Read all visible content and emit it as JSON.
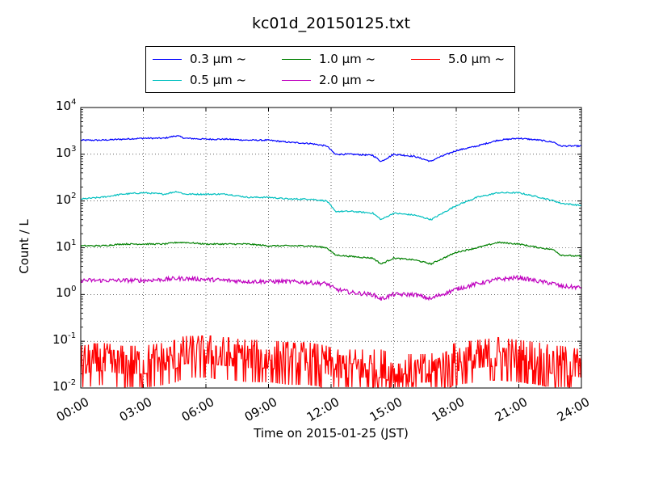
{
  "chart_data": {
    "type": "line",
    "title": "kc01d_20150125.txt",
    "xlabel": "Time on 2015-01-25 (JST)",
    "ylabel": "Count / L",
    "xlim": [
      "00:00",
      "24:00"
    ],
    "ylim": [
      0.01,
      10000
    ],
    "yscale": "log",
    "grid": true,
    "grid_style": "dotted",
    "legend_position": "top-center",
    "x_ticks": [
      "00:00",
      "03:00",
      "06:00",
      "09:00",
      "12:00",
      "15:00",
      "18:00",
      "21:00",
      "24:00"
    ],
    "y_ticks": [
      {
        "base": "10",
        "exp": "-2"
      },
      {
        "base": "10",
        "exp": "-1"
      },
      {
        "base": "10",
        "exp": "0"
      },
      {
        "base": "10",
        "exp": "1"
      },
      {
        "base": "10",
        "exp": "2"
      },
      {
        "base": "10",
        "exp": "3"
      },
      {
        "base": "10",
        "exp": "4"
      }
    ],
    "x_hours": [
      0,
      1,
      2,
      3,
      4,
      4.6,
      5,
      6,
      7,
      8,
      9,
      10,
      11,
      11.8,
      12.2,
      13,
      14,
      14.4,
      15,
      16,
      16.8,
      17,
      18,
      19,
      20,
      21,
      22,
      22.7,
      23,
      24
    ],
    "series": [
      {
        "name": "0.3 μm ~",
        "color": "#0000ff",
        "values": [
          2000,
          2000,
          2100,
          2200,
          2200,
          2500,
          2200,
          2100,
          2100,
          2000,
          2000,
          1800,
          1700,
          1500,
          1000,
          1000,
          950,
          700,
          1000,
          900,
          700,
          800,
          1200,
          1500,
          2000,
          2200,
          2000,
          1800,
          1500,
          1500
        ]
      },
      {
        "name": "0.5 μm ~",
        "color": "#00bfbf",
        "values": [
          110,
          120,
          140,
          150,
          140,
          160,
          140,
          140,
          140,
          120,
          120,
          110,
          110,
          100,
          60,
          60,
          55,
          40,
          55,
          50,
          40,
          45,
          80,
          120,
          150,
          150,
          120,
          100,
          90,
          80
        ]
      },
      {
        "name": "1.0 μm ~",
        "color": "#008000",
        "values": [
          11,
          11,
          12,
          12,
          12,
          13,
          13,
          12,
          12,
          12,
          11,
          11,
          11,
          10,
          7,
          6.5,
          6,
          4.5,
          6,
          5.5,
          4.5,
          5,
          8,
          10,
          13,
          12,
          10,
          9,
          7,
          6.5
        ]
      },
      {
        "name": "2.0 μm ~",
        "color": "#bf00bf",
        "values": [
          2,
          2,
          2,
          2,
          2.1,
          2.2,
          2.2,
          2.1,
          2,
          1.9,
          1.9,
          1.9,
          1.8,
          1.7,
          1.3,
          1.1,
          1,
          0.8,
          1,
          1,
          0.8,
          0.9,
          1.3,
          1.7,
          2.1,
          2.3,
          1.9,
          1.7,
          1.5,
          1.4
        ]
      },
      {
        "name": "5.0 μm ~",
        "color": "#ff0000",
        "values": [
          0.03,
          0.035,
          0.03,
          0.03,
          0.035,
          0.04,
          0.05,
          0.05,
          0.045,
          0.04,
          0.04,
          0.035,
          0.035,
          0.03,
          0.025,
          0.025,
          0.025,
          0.025,
          0.02,
          0.02,
          0.02,
          0.025,
          0.035,
          0.04,
          0.045,
          0.04,
          0.035,
          0.03,
          0.03,
          0.025
        ]
      }
    ]
  }
}
